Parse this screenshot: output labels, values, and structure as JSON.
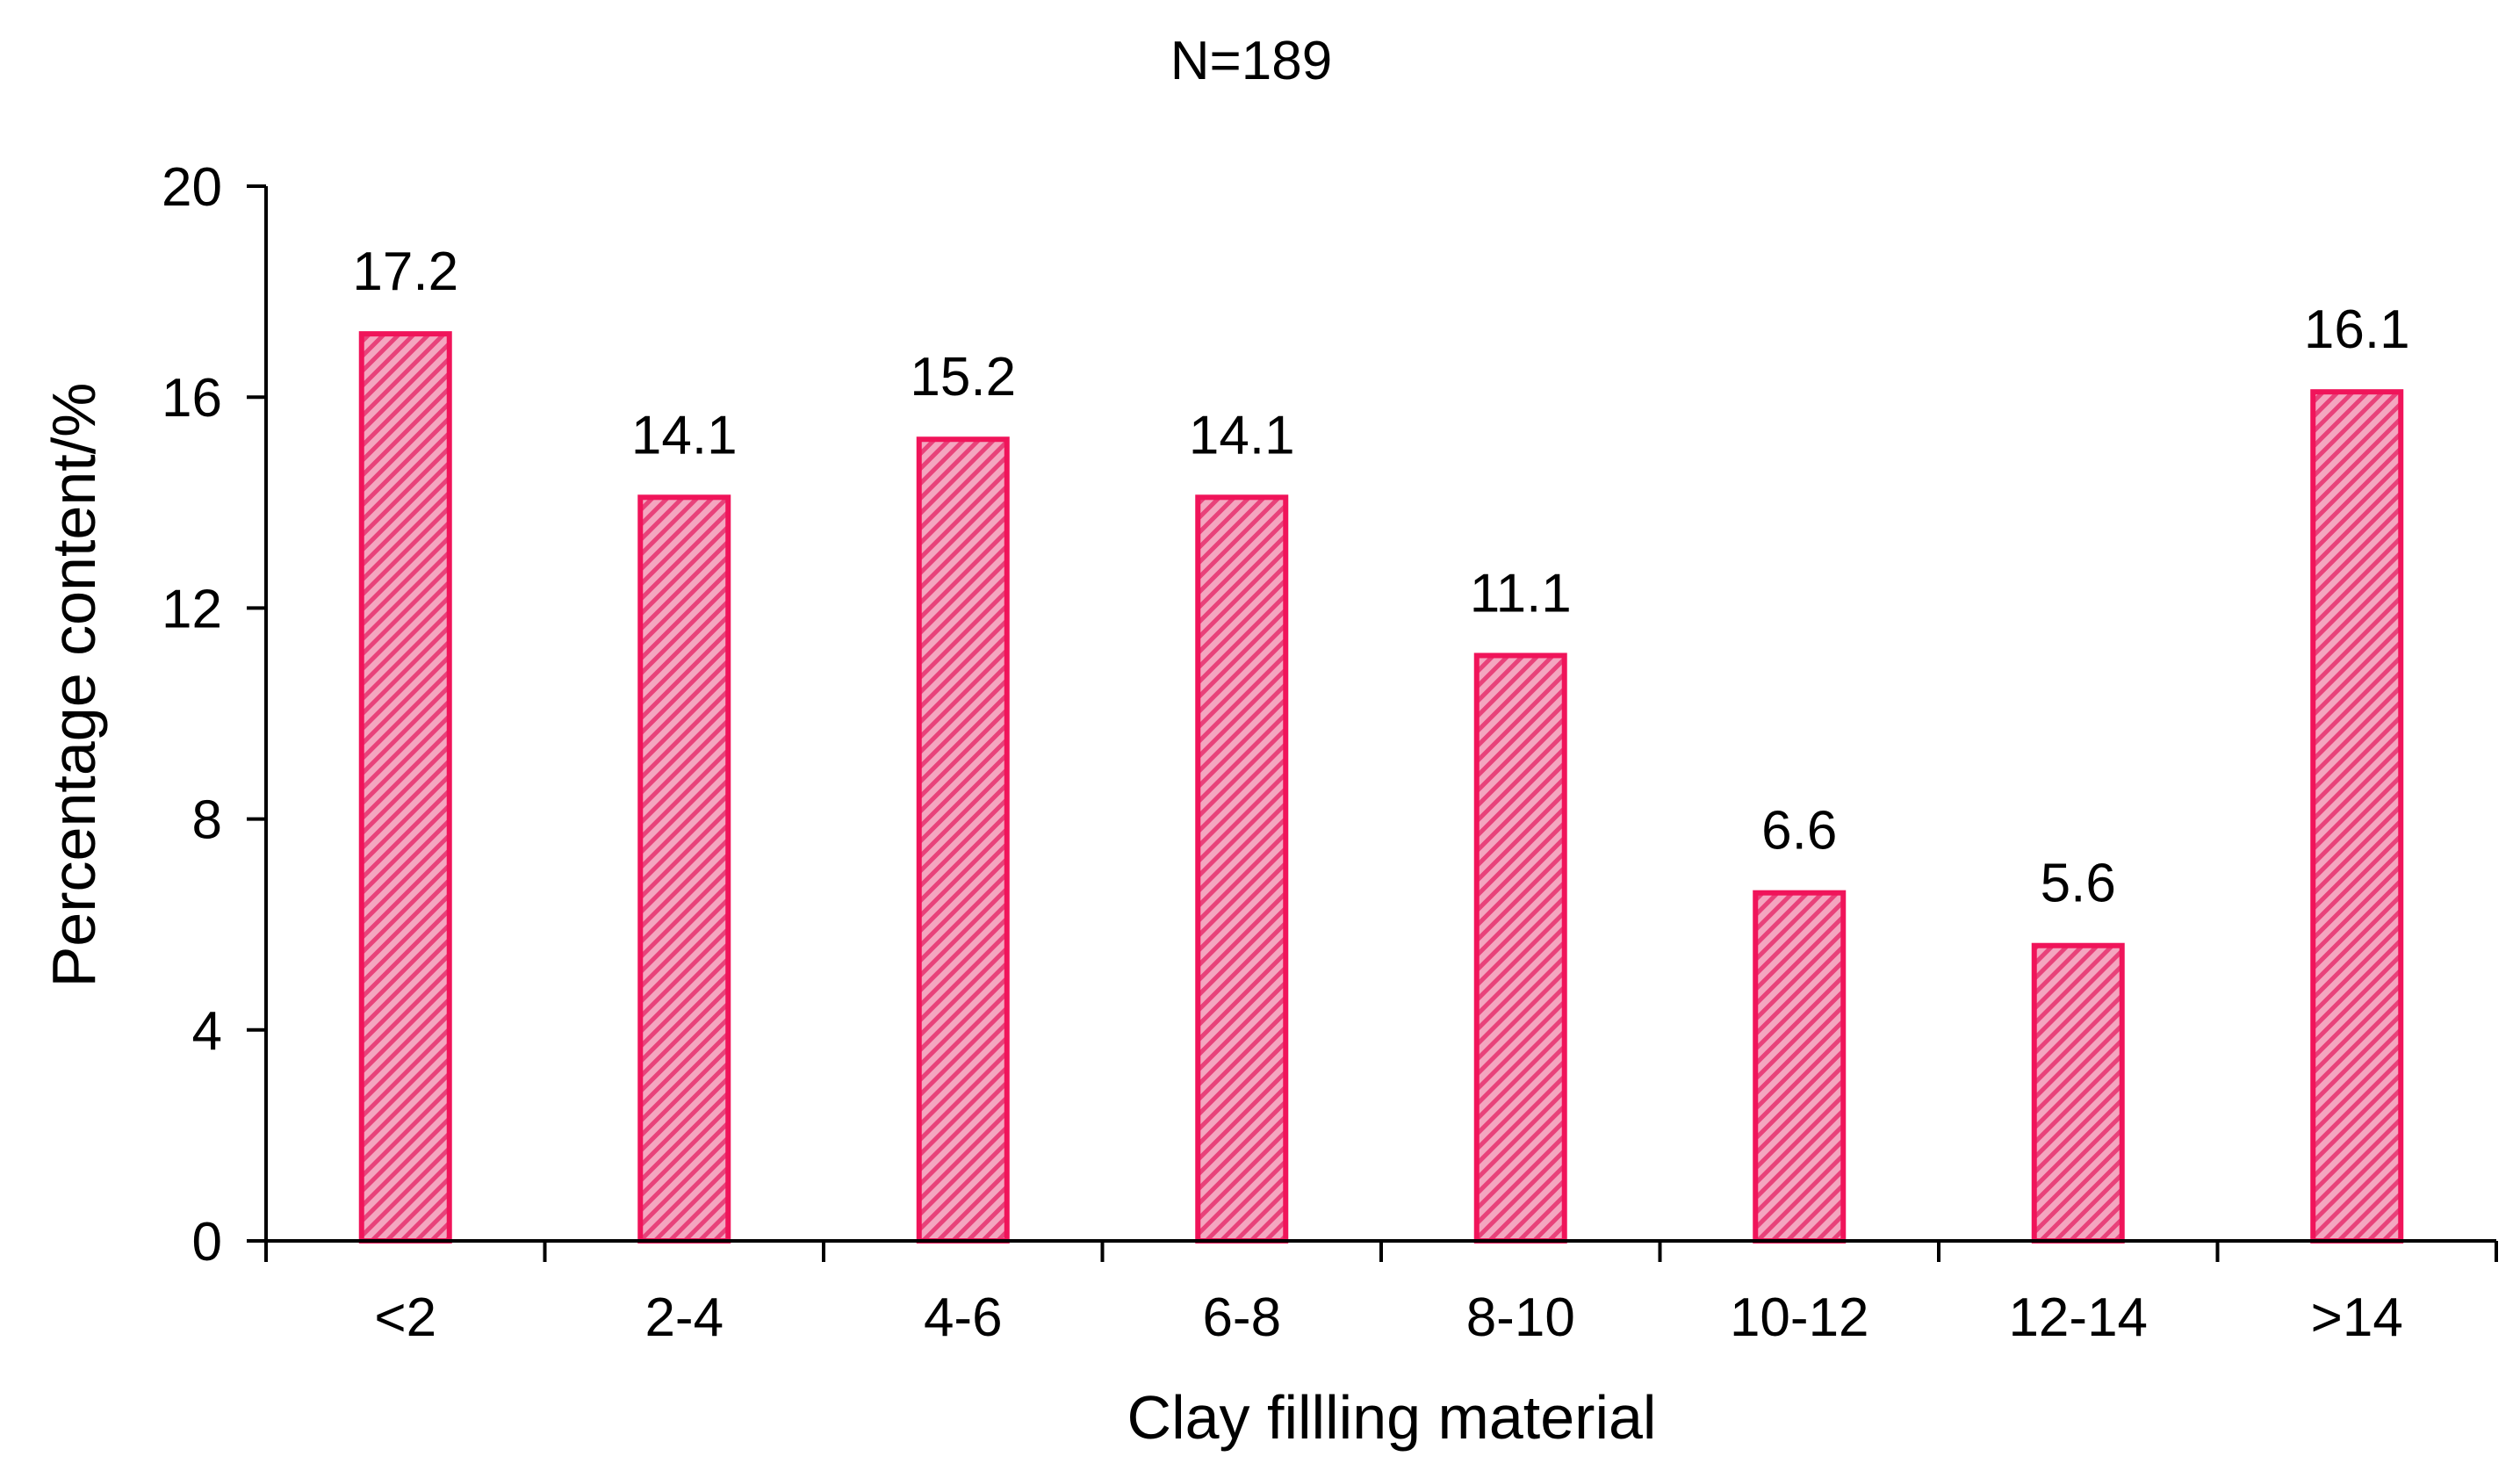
{
  "chart_data": {
    "type": "bar",
    "title": "N=189",
    "xlabel": "Clay fillling material",
    "ylabel": "Percentage content/%",
    "categories": [
      "<2",
      "2-4",
      "4-6",
      "6-8",
      "8-10",
      "10-12",
      "12-14",
      ">14"
    ],
    "values": [
      17.2,
      14.1,
      15.2,
      14.1,
      11.1,
      6.6,
      5.6,
      16.1
    ],
    "data_labels": [
      "17.2",
      "14.1",
      "15.2",
      "14.1",
      "11.1",
      "6.6",
      "5.6",
      "16.1"
    ],
    "ylim": [
      0,
      20
    ],
    "yticks": [
      0,
      4,
      8,
      12,
      16,
      20
    ],
    "ytick_labels": [
      "0",
      "4",
      "8",
      "12",
      "16",
      "20"
    ],
    "grid": false,
    "legend": "none",
    "bar_fill_pattern": "diagonal-hatch",
    "colors": {
      "bar_stroke": "#f0145a",
      "bar_fill": "#f4a6c0",
      "hatch": "#e8427a",
      "axis": "#000000"
    }
  }
}
